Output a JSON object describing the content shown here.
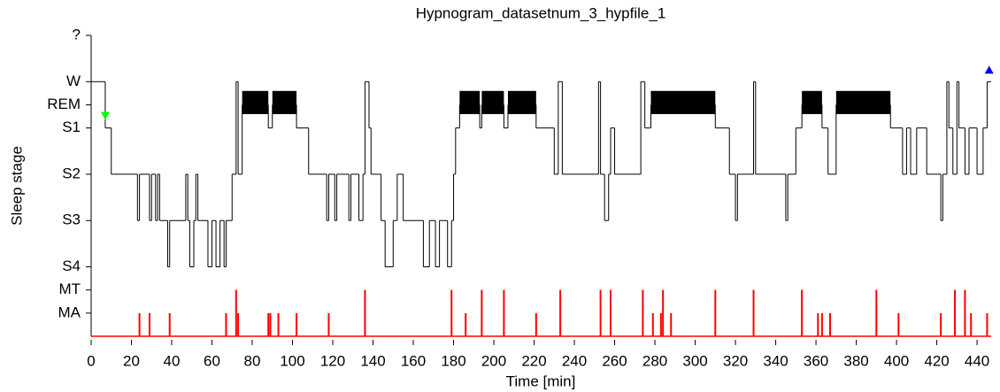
{
  "chart_data": {
    "type": "hypnogram",
    "title": "Hypnogram_datasetnum_3_hypfile_1",
    "xlabel": "Time [min]",
    "ylabel": "Sleep stage",
    "xlim": [
      0,
      447
    ],
    "xticks": [
      0,
      20,
      40,
      60,
      80,
      100,
      120,
      140,
      160,
      180,
      200,
      220,
      240,
      260,
      280,
      300,
      320,
      340,
      360,
      380,
      400,
      420,
      440
    ],
    "ylim": [
      0,
      13
    ],
    "yticks": [
      {
        "value": 1,
        "label": "MA"
      },
      {
        "value": 2,
        "label": "MT"
      },
      {
        "value": 3,
        "label": "S4"
      },
      {
        "value": 5,
        "label": "S3"
      },
      {
        "value": 7,
        "label": "S2"
      },
      {
        "value": 9,
        "label": "S1"
      },
      {
        "value": 10,
        "label": "REM"
      },
      {
        "value": 11,
        "label": "W"
      },
      {
        "value": 13,
        "label": "?"
      }
    ],
    "hypnogram": {
      "color": "#000000",
      "x": [
        0,
        7,
        10,
        23,
        24,
        29,
        30,
        32,
        33,
        34,
        38,
        39,
        47,
        48,
        49,
        51,
        52,
        53,
        58,
        60,
        62,
        64,
        66,
        67,
        70,
        72,
        73,
        75,
        88,
        90,
        102,
        108,
        117,
        118,
        121,
        122,
        128,
        129,
        133,
        135,
        136,
        138,
        139,
        144,
        146,
        150,
        152,
        155,
        165,
        168,
        171,
        173,
        177,
        179,
        180,
        181,
        183,
        193,
        194,
        205,
        207,
        221,
        230,
        232,
        234,
        252,
        253,
        255,
        257,
        258,
        260,
        273,
        275,
        278,
        310,
        317,
        320,
        321,
        329,
        330,
        345,
        346,
        350,
        353,
        363,
        366,
        370,
        397,
        403,
        405,
        407,
        410,
        415,
        422,
        423,
        425,
        426,
        428,
        430,
        431,
        434,
        436,
        440,
        443,
        445
      ],
      "values": [
        11,
        9,
        7,
        5,
        7,
        5,
        7,
        5,
        7,
        5,
        3,
        5,
        7,
        5,
        3,
        5,
        7,
        5,
        3,
        5,
        3,
        5,
        3,
        5,
        7,
        11,
        7,
        10,
        9,
        10,
        9,
        7,
        5,
        7,
        5,
        7,
        5,
        7,
        5,
        7,
        11,
        9,
        7,
        5,
        3,
        5,
        7,
        5,
        3,
        5,
        3,
        5,
        3,
        5,
        7,
        9,
        10,
        9,
        10,
        9,
        10,
        9,
        7,
        11,
        7,
        11,
        7,
        5,
        7,
        9,
        7,
        11,
        9,
        10,
        9,
        7,
        5,
        7,
        11,
        7,
        5,
        7,
        9,
        10,
        9,
        7,
        10,
        9,
        7,
        9,
        7,
        9,
        7,
        5,
        7,
        11,
        9,
        7,
        11,
        9,
        7,
        9,
        7,
        9,
        11
      ]
    },
    "rem_blocks": [
      [
        75,
        88
      ],
      [
        90,
        102
      ],
      [
        183,
        193
      ],
      [
        194,
        205
      ],
      [
        207,
        221
      ],
      [
        278,
        310
      ],
      [
        353,
        363
      ],
      [
        370,
        397
      ]
    ],
    "arousals": {
      "color": "#ff0000",
      "x": [
        24,
        29,
        39,
        67,
        72,
        73,
        88,
        89,
        93,
        102,
        118,
        136,
        179,
        186,
        194,
        205,
        221,
        233,
        253,
        258,
        274,
        279,
        283,
        284,
        288,
        310,
        329,
        353,
        361,
        363,
        367,
        390,
        401,
        422,
        429,
        434,
        437,
        445
      ],
      "values": [
        1,
        1,
        1,
        1,
        2,
        1,
        1,
        1,
        1,
        1,
        1,
        2,
        2,
        1,
        2,
        2,
        1,
        2,
        2,
        2,
        2,
        1,
        1,
        2,
        1,
        2,
        2,
        2,
        1,
        1,
        1,
        2,
        1,
        1,
        2,
        2,
        1,
        1
      ]
    },
    "start_marker": {
      "x": 7,
      "y": 9.5,
      "color": "#00ff00"
    },
    "end_marker": {
      "x": 446,
      "y": 11.5,
      "color": "#0000ff"
    }
  }
}
